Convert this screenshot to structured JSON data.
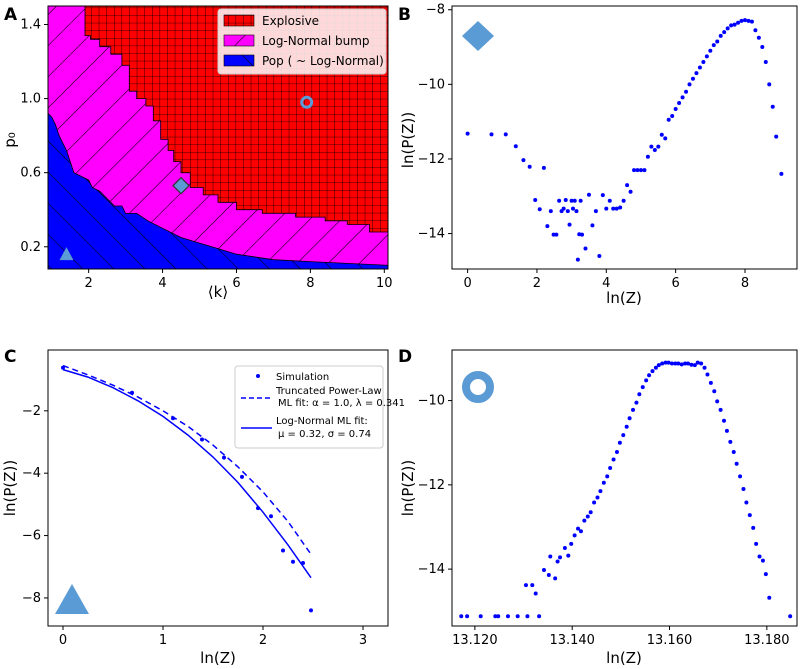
{
  "chart_data": [
    {
      "panel": "A",
      "type": "area",
      "xlabel": "⟨k⟩",
      "ylabel": "p₀",
      "xlim": [
        0.9,
        10.1
      ],
      "ylim": [
        0.08,
        1.5
      ],
      "xticks": [
        2,
        4,
        6,
        8,
        10
      ],
      "yticks": [
        0.2,
        0.6,
        1.0,
        1.4
      ],
      "legend": [
        "Explosive",
        "Log-Normal bump",
        "Pop ( ~ Log-Normal)"
      ],
      "legend_position": "top-right",
      "colors": {
        "explosive": "#ff0000",
        "lognormal": "#ff00ff",
        "pop": "#0000ff"
      },
      "boundary_explosive": [
        [
          1.9,
          1.5
        ],
        [
          1.9,
          1.34
        ],
        [
          2.05,
          1.34
        ],
        [
          2.05,
          1.32
        ],
        [
          2.3,
          1.32
        ],
        [
          2.3,
          1.28
        ],
        [
          2.6,
          1.28
        ],
        [
          2.6,
          1.24
        ],
        [
          2.9,
          1.24
        ],
        [
          2.9,
          1.18
        ],
        [
          3.1,
          1.18
        ],
        [
          3.1,
          1.04
        ],
        [
          3.3,
          1.04
        ],
        [
          3.3,
          1.0
        ],
        [
          3.55,
          1.0
        ],
        [
          3.55,
          0.96
        ],
        [
          3.75,
          0.96
        ],
        [
          3.75,
          0.88
        ],
        [
          3.95,
          0.88
        ],
        [
          3.95,
          0.78
        ],
        [
          4.15,
          0.78
        ],
        [
          4.15,
          0.72
        ],
        [
          4.3,
          0.72
        ],
        [
          4.3,
          0.66
        ],
        [
          4.5,
          0.66
        ],
        [
          4.5,
          0.6
        ],
        [
          4.75,
          0.6
        ],
        [
          4.75,
          0.52
        ],
        [
          5.1,
          0.52
        ],
        [
          5.1,
          0.48
        ],
        [
          5.5,
          0.48
        ],
        [
          5.5,
          0.44
        ],
        [
          6.0,
          0.44
        ],
        [
          6.0,
          0.4
        ],
        [
          6.7,
          0.4
        ],
        [
          6.7,
          0.38
        ],
        [
          7.6,
          0.38
        ],
        [
          7.6,
          0.36
        ],
        [
          8.4,
          0.36
        ],
        [
          8.4,
          0.34
        ],
        [
          9.0,
          0.34
        ],
        [
          9.0,
          0.32
        ],
        [
          9.6,
          0.32
        ],
        [
          9.6,
          0.28
        ],
        [
          10.1,
          0.28
        ]
      ],
      "boundary_pop": [
        [
          0.9,
          0.92
        ],
        [
          1.0,
          0.9
        ],
        [
          1.1,
          0.86
        ],
        [
          1.2,
          0.8
        ],
        [
          1.3,
          0.76
        ],
        [
          1.4,
          0.72
        ],
        [
          1.5,
          0.66
        ],
        [
          1.6,
          0.6
        ],
        [
          1.8,
          0.58
        ],
        [
          2.0,
          0.56
        ],
        [
          2.1,
          0.52
        ],
        [
          2.3,
          0.5
        ],
        [
          2.5,
          0.46
        ],
        [
          2.7,
          0.42
        ],
        [
          2.9,
          0.42
        ],
        [
          3.0,
          0.38
        ],
        [
          3.3,
          0.38
        ],
        [
          3.6,
          0.34
        ],
        [
          4.0,
          0.3
        ],
        [
          4.5,
          0.25
        ],
        [
          5.0,
          0.22
        ],
        [
          5.5,
          0.19
        ],
        [
          6.0,
          0.16
        ],
        [
          7.0,
          0.13
        ],
        [
          8.0,
          0.12
        ],
        [
          9.0,
          0.11
        ],
        [
          10.1,
          0.1
        ]
      ],
      "markers": [
        {
          "shape": "circle",
          "x": 7.9,
          "y": 0.98
        },
        {
          "shape": "diamond",
          "x": 4.5,
          "y": 0.53
        },
        {
          "shape": "triangle",
          "x": 1.4,
          "y": 0.16
        }
      ]
    },
    {
      "panel": "B",
      "type": "scatter",
      "xlabel": "ln(Z)",
      "ylabel": "ln(P(Z))",
      "xlim": [
        -0.45,
        9.5
      ],
      "ylim": [
        -14.95,
        -7.9
      ],
      "xticks": [
        0,
        2,
        4,
        6,
        8
      ],
      "yticks": [
        -14,
        -12,
        -10,
        -8
      ],
      "marker": "diamond",
      "points": [
        [
          0,
          -11.32
        ],
        [
          0.69,
          -11.34
        ],
        [
          1.1,
          -11.34
        ],
        [
          1.39,
          -11.66
        ],
        [
          1.61,
          -12.03
        ],
        [
          1.79,
          -12.21
        ],
        [
          1.95,
          -13.1
        ],
        [
          2.08,
          -13.35
        ],
        [
          2.2,
          -12.24
        ],
        [
          2.3,
          -13.8
        ],
        [
          2.4,
          -13.4
        ],
        [
          2.48,
          -14.03
        ],
        [
          2.56,
          -14.03
        ],
        [
          2.64,
          -13.12
        ],
        [
          2.71,
          -13.4
        ],
        [
          2.77,
          -13.33
        ],
        [
          2.83,
          -13.1
        ],
        [
          2.89,
          -13.4
        ],
        [
          2.94,
          -13.76
        ],
        [
          3.0,
          -13.12
        ],
        [
          3.04,
          -13.33
        ],
        [
          3.09,
          -13.12
        ],
        [
          3.14,
          -13.4
        ],
        [
          3.18,
          -14.7
        ],
        [
          3.22,
          -14.02
        ],
        [
          3.26,
          -13.12
        ],
        [
          3.3,
          -14.03
        ],
        [
          3.4,
          -14.4
        ],
        [
          3.5,
          -12.96
        ],
        [
          3.6,
          -13.78
        ],
        [
          3.7,
          -13.4
        ],
        [
          3.8,
          -14.6
        ],
        [
          3.9,
          -12.97
        ],
        [
          4.0,
          -13.33
        ],
        [
          4.1,
          -13.12
        ],
        [
          4.2,
          -13.33
        ],
        [
          4.3,
          -13.33
        ],
        [
          4.4,
          -13.3
        ],
        [
          4.5,
          -13.12
        ],
        [
          4.6,
          -12.7
        ],
        [
          4.7,
          -12.88
        ],
        [
          4.8,
          -12.3
        ],
        [
          4.9,
          -12.3
        ],
        [
          5.0,
          -12.3
        ],
        [
          5.1,
          -12.3
        ],
        [
          5.2,
          -11.94
        ],
        [
          5.3,
          -11.67
        ],
        [
          5.4,
          -11.76
        ],
        [
          5.5,
          -11.67
        ],
        [
          5.6,
          -11.35
        ],
        [
          5.7,
          -11.45
        ],
        [
          5.8,
          -10.95
        ],
        [
          5.9,
          -10.85
        ],
        [
          6.0,
          -10.66
        ],
        [
          6.1,
          -10.5
        ],
        [
          6.2,
          -10.35
        ],
        [
          6.3,
          -10.2
        ],
        [
          6.4,
          -10.0
        ],
        [
          6.5,
          -9.85
        ],
        [
          6.6,
          -9.7
        ],
        [
          6.7,
          -9.55
        ],
        [
          6.8,
          -9.4
        ],
        [
          6.9,
          -9.25
        ],
        [
          7.0,
          -9.1
        ],
        [
          7.1,
          -8.95
        ],
        [
          7.2,
          -8.85
        ],
        [
          7.3,
          -8.7
        ],
        [
          7.4,
          -8.6
        ],
        [
          7.5,
          -8.5
        ],
        [
          7.6,
          -8.42
        ],
        [
          7.7,
          -8.4
        ],
        [
          7.8,
          -8.35
        ],
        [
          7.9,
          -8.3
        ],
        [
          8.0,
          -8.28
        ],
        [
          8.1,
          -8.3
        ],
        [
          8.2,
          -8.32
        ],
        [
          8.3,
          -8.55
        ],
        [
          8.4,
          -8.75
        ],
        [
          8.5,
          -9.0
        ],
        [
          8.6,
          -9.4
        ],
        [
          8.7,
          -10.0
        ],
        [
          8.8,
          -10.6
        ],
        [
          8.9,
          -11.4
        ],
        [
          9.05,
          -12.4
        ]
      ]
    },
    {
      "panel": "C",
      "type": "line",
      "xlabel": "ln(Z)",
      "ylabel": "ln(P(Z))",
      "xlim": [
        -0.15,
        3.25
      ],
      "ylim": [
        -8.9,
        -0.05
      ],
      "xticks": [
        0,
        1,
        2,
        3
      ],
      "yticks": [
        -8,
        -6,
        -4,
        -2
      ],
      "marker": "triangle",
      "points": [
        [
          0,
          -0.62
        ],
        [
          0.69,
          -1.42
        ],
        [
          1.1,
          -2.24
        ],
        [
          1.39,
          -2.92
        ],
        [
          1.61,
          -3.5
        ],
        [
          1.79,
          -4.12
        ],
        [
          1.95,
          -5.12
        ],
        [
          2.08,
          -5.38
        ],
        [
          2.2,
          -6.48
        ],
        [
          2.3,
          -6.84
        ],
        [
          2.4,
          -6.88
        ],
        [
          2.48,
          -8.4
        ]
      ],
      "series": [
        {
          "name": "Truncated Power-Law ML fit",
          "style": "dashed",
          "x": [
            0,
            0.25,
            0.5,
            0.75,
            1,
            1.25,
            1.5,
            1.75,
            2,
            2.25,
            2.48
          ],
          "y": [
            -0.55,
            -0.85,
            -1.18,
            -1.56,
            -2.0,
            -2.5,
            -3.1,
            -3.8,
            -4.6,
            -5.55,
            -6.6
          ]
        },
        {
          "name": "Log-Normal ML fit",
          "style": "solid",
          "x": [
            0,
            0.25,
            0.5,
            0.75,
            1,
            1.25,
            1.5,
            1.75,
            2,
            2.25,
            2.48
          ],
          "y": [
            -0.68,
            -0.92,
            -1.26,
            -1.68,
            -2.18,
            -2.78,
            -3.48,
            -4.3,
            -5.25,
            -6.3,
            -7.35
          ]
        }
      ],
      "legend": {
        "simulation": "Simulation",
        "tpl_title": "Truncated Power-Law",
        "tpl_params": "ML fit:  α = 1.0, λ = 0.341",
        "ln_title": "Log-Normal  ML fit:",
        "ln_params": "μ = 0.32, σ = 0.74",
        "position": "top-right"
      }
    },
    {
      "panel": "D",
      "type": "scatter",
      "xlabel": "ln(Z)",
      "ylabel": "ln(P(Z))",
      "xlim": [
        13.1153,
        13.1862
      ],
      "ylim": [
        -15.35,
        -8.8
      ],
      "xticks": [
        13.12,
        13.14,
        13.16,
        13.18
      ],
      "xtick_labels": [
        "13.120",
        "13.140",
        "13.160",
        "13.180"
      ],
      "yticks": [
        -14,
        -12,
        -10
      ],
      "marker": "circle",
      "points": [
        [
          13.1172,
          -15.12
        ],
        [
          13.1184,
          -15.12
        ],
        [
          13.1212,
          -15.12
        ],
        [
          13.1242,
          -15.12
        ],
        [
          13.1248,
          -15.12
        ],
        [
          13.1268,
          -15.12
        ],
        [
          13.1288,
          -15.12
        ],
        [
          13.1305,
          -14.38
        ],
        [
          13.1308,
          -15.12
        ],
        [
          13.1318,
          -14.38
        ],
        [
          13.1325,
          -14.58
        ],
        [
          13.1332,
          -15.12
        ],
        [
          13.1342,
          -14.02
        ],
        [
          13.1352,
          -14.14
        ],
        [
          13.1355,
          -13.7
        ],
        [
          13.1365,
          -14.22
        ],
        [
          13.137,
          -13.82
        ],
        [
          13.1375,
          -13.72
        ],
        [
          13.1385,
          -13.5
        ],
        [
          13.1392,
          -13.68
        ],
        [
          13.1398,
          -13.4
        ],
        [
          13.1405,
          -13.2
        ],
        [
          13.1412,
          -13.04
        ],
        [
          13.1418,
          -13.1
        ],
        [
          13.1425,
          -12.85
        ],
        [
          13.1432,
          -12.75
        ],
        [
          13.1438,
          -12.65
        ],
        [
          13.1445,
          -12.42
        ],
        [
          13.1452,
          -12.3
        ],
        [
          13.1458,
          -12.15
        ],
        [
          13.1465,
          -11.95
        ],
        [
          13.1472,
          -11.8
        ],
        [
          13.1478,
          -11.6
        ],
        [
          13.1485,
          -11.4
        ],
        [
          13.1492,
          -11.22
        ],
        [
          13.1498,
          -11.0
        ],
        [
          13.1505,
          -10.82
        ],
        [
          13.1512,
          -10.62
        ],
        [
          13.1518,
          -10.42
        ],
        [
          13.1525,
          -10.22
        ],
        [
          13.1532,
          -10.05
        ],
        [
          13.1538,
          -9.85
        ],
        [
          13.1545,
          -9.68
        ],
        [
          13.1552,
          -9.52
        ],
        [
          13.1558,
          -9.4
        ],
        [
          13.1565,
          -9.3
        ],
        [
          13.1572,
          -9.22
        ],
        [
          13.1578,
          -9.16
        ],
        [
          13.1585,
          -9.12
        ],
        [
          13.1592,
          -9.1
        ],
        [
          13.1598,
          -9.1
        ],
        [
          13.1605,
          -9.12
        ],
        [
          13.1612,
          -9.12
        ],
        [
          13.1618,
          -9.12
        ],
        [
          13.1625,
          -9.14
        ],
        [
          13.1632,
          -9.12
        ],
        [
          13.1638,
          -9.12
        ],
        [
          13.1645,
          -9.15
        ],
        [
          13.1652,
          -9.16
        ],
        [
          13.1658,
          -9.1
        ],
        [
          13.1665,
          -9.12
        ],
        [
          13.1672,
          -9.22
        ],
        [
          13.1678,
          -9.38
        ],
        [
          13.1685,
          -9.58
        ],
        [
          13.1692,
          -9.78
        ],
        [
          13.1698,
          -10.02
        ],
        [
          13.1705,
          -10.22
        ],
        [
          13.1712,
          -10.48
        ],
        [
          13.1718,
          -10.72
        ],
        [
          13.1725,
          -10.98
        ],
        [
          13.1732,
          -11.22
        ],
        [
          13.1738,
          -11.5
        ],
        [
          13.1745,
          -11.8
        ],
        [
          13.1752,
          -12.1
        ],
        [
          13.1758,
          -12.42
        ],
        [
          13.1765,
          -12.72
        ],
        [
          13.1772,
          -13.02
        ],
        [
          13.1778,
          -13.4
        ],
        [
          13.1785,
          -13.7
        ],
        [
          13.1792,
          -13.8
        ],
        [
          13.1798,
          -14.12
        ],
        [
          13.1805,
          -14.68
        ],
        [
          13.1848,
          -15.12
        ]
      ]
    }
  ]
}
